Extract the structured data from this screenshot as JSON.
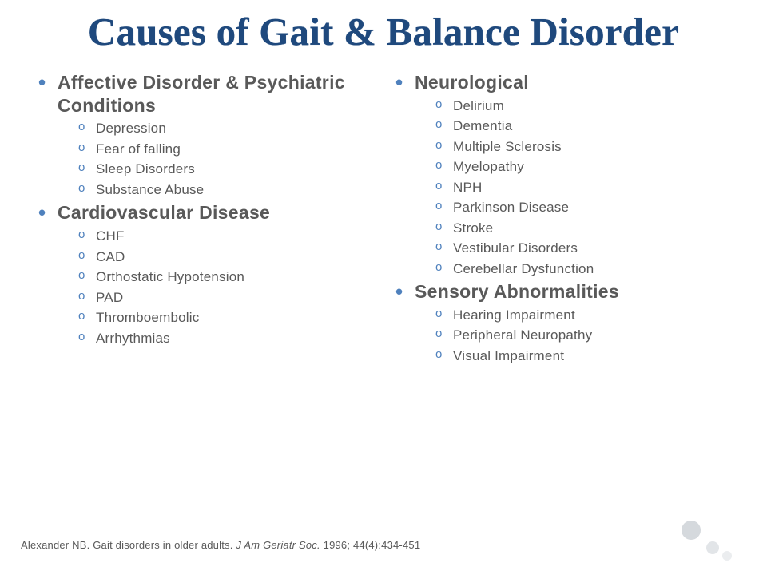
{
  "title": "Causes of Gait & Balance Disorder",
  "colors": {
    "title": "#1f497d",
    "bullet": "#4f81bd",
    "body_text": "#595959",
    "background": "#ffffff",
    "deco1": "#d5d9dd",
    "deco2": "#e2e5e8",
    "deco3": "#ebedef"
  },
  "fonts": {
    "title_family": "Book Antiqua / Palatino, serif",
    "title_size_pt": 37,
    "heading_size_pt": 17,
    "heading_weight": "bold",
    "item_size_pt": 13,
    "citation_size_pt": 10
  },
  "left": [
    {
      "heading": "Affective Disorder & Psychiatric Conditions",
      "items": [
        "Depression",
        "Fear of falling",
        "Sleep Disorders",
        "Substance Abuse"
      ]
    },
    {
      "heading": "Cardiovascular Disease",
      "items": [
        "CHF",
        "CAD",
        "Orthostatic Hypotension",
        "PAD",
        "Thromboembolic",
        "Arrhythmias"
      ]
    }
  ],
  "right": [
    {
      "heading": "Neurological",
      "items": [
        "Delirium",
        "Dementia",
        "Multiple Sclerosis",
        "Myelopathy",
        "NPH",
        "Parkinson Disease",
        "Stroke",
        "Vestibular Disorders",
        "Cerebellar Dysfunction"
      ]
    },
    {
      "heading": "Sensory Abnormalities",
      "items": [
        "Hearing Impairment",
        "Peripheral Neuropathy",
        "Visual Impairment"
      ]
    }
  ],
  "citation": {
    "author": "Alexander NB. Gait disorders in older adults. ",
    "journal": "J Am Geriatr Soc. ",
    "ref": "1996; 44(4):434-451"
  }
}
